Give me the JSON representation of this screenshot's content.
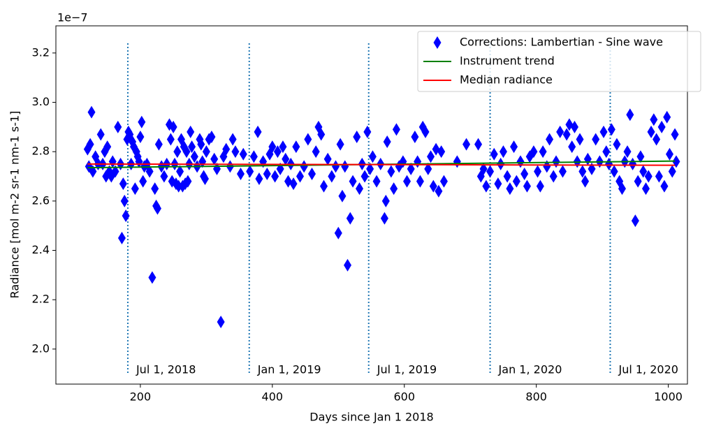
{
  "chart_data": {
    "type": "scatter",
    "offset_label": "1e−7",
    "xlabel": "Days since Jan 1 2018",
    "ylabel": "Radiance [mol m-2 sr-1 nm-1 s-1]",
    "xlim": [
      72,
      1029
    ],
    "ylim": [
      1.858,
      3.31
    ],
    "xticks": [
      200,
      400,
      600,
      800,
      1000
    ],
    "yticks": [
      {
        "value": 2,
        "label": "2.0"
      },
      2.2,
      2.4,
      2.6,
      2.8,
      {
        "value": 3,
        "label": "3.0"
      },
      3.2
    ],
    "legend": "upper right",
    "series": [
      {
        "name": "Corrections: Lambertian - Sine wave",
        "kind": "scatter",
        "marker": "diamond",
        "color": "#0000ff",
        "x": [
          120,
          122,
          124,
          126,
          128,
          132,
          136,
          140,
          143,
          146,
          148,
          150,
          153,
          156,
          158,
          162,
          166,
          170,
          172,
          174,
          176,
          178,
          180,
          182,
          184,
          186,
          188,
          190,
          192,
          194,
          196,
          198,
          200,
          202,
          204,
          206,
          210,
          214,
          218,
          222,
          224,
          226,
          228,
          232,
          236,
          240,
          244,
          246,
          248,
          250,
          252,
          254,
          256,
          258,
          260,
          262,
          264,
          266,
          268,
          270,
          272,
          274,
          276,
          278,
          282,
          286,
          290,
          292,
          294,
          296,
          298,
          300,
          304,
          308,
          312,
          316,
          322,
          326,
          330,
          336,
          340,
          344,
          352,
          356,
          366,
          372,
          378,
          380,
          386,
          392,
          396,
          400,
          404,
          408,
          412,
          416,
          420,
          424,
          428,
          432,
          436,
          442,
          448,
          454,
          460,
          466,
          470,
          474,
          478,
          484,
          490,
          496,
          500,
          503,
          506,
          510,
          514,
          518,
          522,
          528,
          532,
          536,
          540,
          544,
          548,
          552,
          558,
          564,
          570,
          572,
          574,
          580,
          584,
          588,
          592,
          598,
          604,
          610,
          616,
          620,
          624,
          628,
          632,
          636,
          640,
          644,
          648,
          652,
          656,
          660,
          680,
          694,
          712,
          716,
          720,
          724,
          730,
          736,
          742,
          746,
          750,
          756,
          760,
          766,
          770,
          776,
          782,
          786,
          790,
          796,
          802,
          806,
          810,
          816,
          820,
          826,
          830,
          836,
          840,
          846,
          850,
          854,
          858,
          862,
          866,
          870,
          874,
          878,
          884,
          890,
          896,
          902,
          906,
          910,
          914,
          918,
          922,
          926,
          930,
          934,
          938,
          942,
          946,
          950,
          954,
          958,
          962,
          966,
          970,
          974,
          978,
          982,
          986,
          990,
          994,
          998,
          1002,
          1006,
          1010,
          1012
        ],
        "values": [
          2.81,
          2.74,
          2.83,
          2.96,
          2.72,
          2.78,
          2.75,
          2.87,
          2.75,
          2.8,
          2.7,
          2.82,
          2.72,
          2.7,
          2.76,
          2.72,
          2.9,
          2.75,
          2.45,
          2.67,
          2.6,
          2.54,
          2.85,
          2.88,
          2.87,
          2.75,
          2.84,
          2.82,
          2.65,
          2.8,
          2.78,
          2.76,
          2.86,
          2.92,
          2.68,
          2.74,
          2.75,
          2.72,
          2.29,
          2.65,
          2.58,
          2.57,
          2.83,
          2.74,
          2.7,
          2.75,
          2.91,
          2.85,
          2.68,
          2.9,
          2.75,
          2.67,
          2.8,
          2.66,
          2.72,
          2.85,
          2.66,
          2.82,
          2.67,
          2.8,
          2.68,
          2.75,
          2.88,
          2.82,
          2.78,
          2.74,
          2.85,
          2.83,
          2.76,
          2.7,
          2.69,
          2.8,
          2.85,
          2.86,
          2.77,
          2.73,
          2.11,
          2.78,
          2.81,
          2.74,
          2.85,
          2.8,
          2.71,
          2.79,
          2.72,
          2.78,
          2.88,
          2.69,
          2.76,
          2.71,
          2.79,
          2.82,
          2.7,
          2.8,
          2.73,
          2.82,
          2.77,
          2.68,
          2.75,
          2.67,
          2.82,
          2.7,
          2.74,
          2.85,
          2.71,
          2.8,
          2.9,
          2.87,
          2.66,
          2.77,
          2.7,
          2.74,
          2.47,
          2.83,
          2.62,
          2.74,
          2.34,
          2.53,
          2.68,
          2.86,
          2.65,
          2.75,
          2.7,
          2.88,
          2.73,
          2.78,
          2.68,
          2.75,
          2.53,
          2.6,
          2.84,
          2.72,
          2.65,
          2.89,
          2.74,
          2.76,
          2.68,
          2.73,
          2.86,
          2.76,
          2.68,
          2.9,
          2.88,
          2.73,
          2.78,
          2.66,
          2.81,
          2.64,
          2.8,
          2.68,
          2.76,
          2.83,
          2.83,
          2.7,
          2.73,
          2.66,
          2.72,
          2.79,
          2.67,
          2.75,
          2.8,
          2.7,
          2.65,
          2.82,
          2.68,
          2.76,
          2.71,
          2.66,
          2.78,
          2.8,
          2.72,
          2.66,
          2.8,
          2.74,
          2.85,
          2.7,
          2.76,
          2.88,
          2.72,
          2.87,
          2.91,
          2.82,
          2.9,
          2.76,
          2.85,
          2.72,
          2.68,
          2.77,
          2.73,
          2.85,
          2.76,
          2.88,
          2.8,
          2.75,
          2.89,
          2.72,
          2.83,
          2.68,
          2.65,
          2.76,
          2.8,
          2.95,
          2.75,
          2.52,
          2.68,
          2.78,
          2.72,
          2.65,
          2.7,
          2.88,
          2.93,
          2.85,
          2.7,
          2.9,
          2.66,
          2.94,
          2.79,
          2.72,
          2.87,
          2.76
        ]
      },
      {
        "name": "Instrument trend",
        "kind": "line",
        "color": "#008000",
        "x": [
          120,
          1010
        ],
        "values": [
          2.735,
          2.762
        ]
      },
      {
        "name": "Median radiance",
        "kind": "line",
        "color": "#ff0000",
        "x": [
          120,
          1010
        ],
        "values": [
          2.75,
          2.745
        ]
      }
    ],
    "vlines": [
      {
        "x": 181,
        "label": "Jul 1, 2018"
      },
      {
        "x": 365,
        "label": "Jan 1, 2019"
      },
      {
        "x": 546,
        "label": "Jul 1, 2019"
      },
      {
        "x": 730,
        "label": "Jan 1, 2020"
      },
      {
        "x": 912,
        "label": "Jul 1, 2020"
      }
    ],
    "vline_color": "#1f77b4"
  }
}
